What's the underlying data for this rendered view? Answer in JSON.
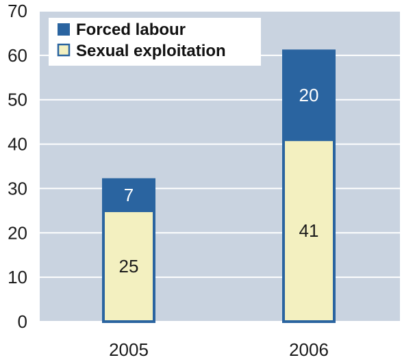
{
  "chart_data": {
    "type": "bar",
    "stacked": true,
    "categories": [
      "2005",
      "2006"
    ],
    "series": [
      {
        "name": "Sexual exploitation",
        "values": [
          25,
          41
        ],
        "color": "#f3f0c0"
      },
      {
        "name": "Forced labour",
        "values": [
          7,
          20
        ],
        "color": "#2a64a0"
      }
    ],
    "ylim": [
      0,
      70
    ],
    "yticks": [
      "0",
      "10",
      "20",
      "30",
      "40",
      "50",
      "60",
      "70"
    ],
    "grid": true,
    "legend": "top-left",
    "plot_background": "#c9d3e0",
    "bar_outline": "#2a64a0"
  }
}
